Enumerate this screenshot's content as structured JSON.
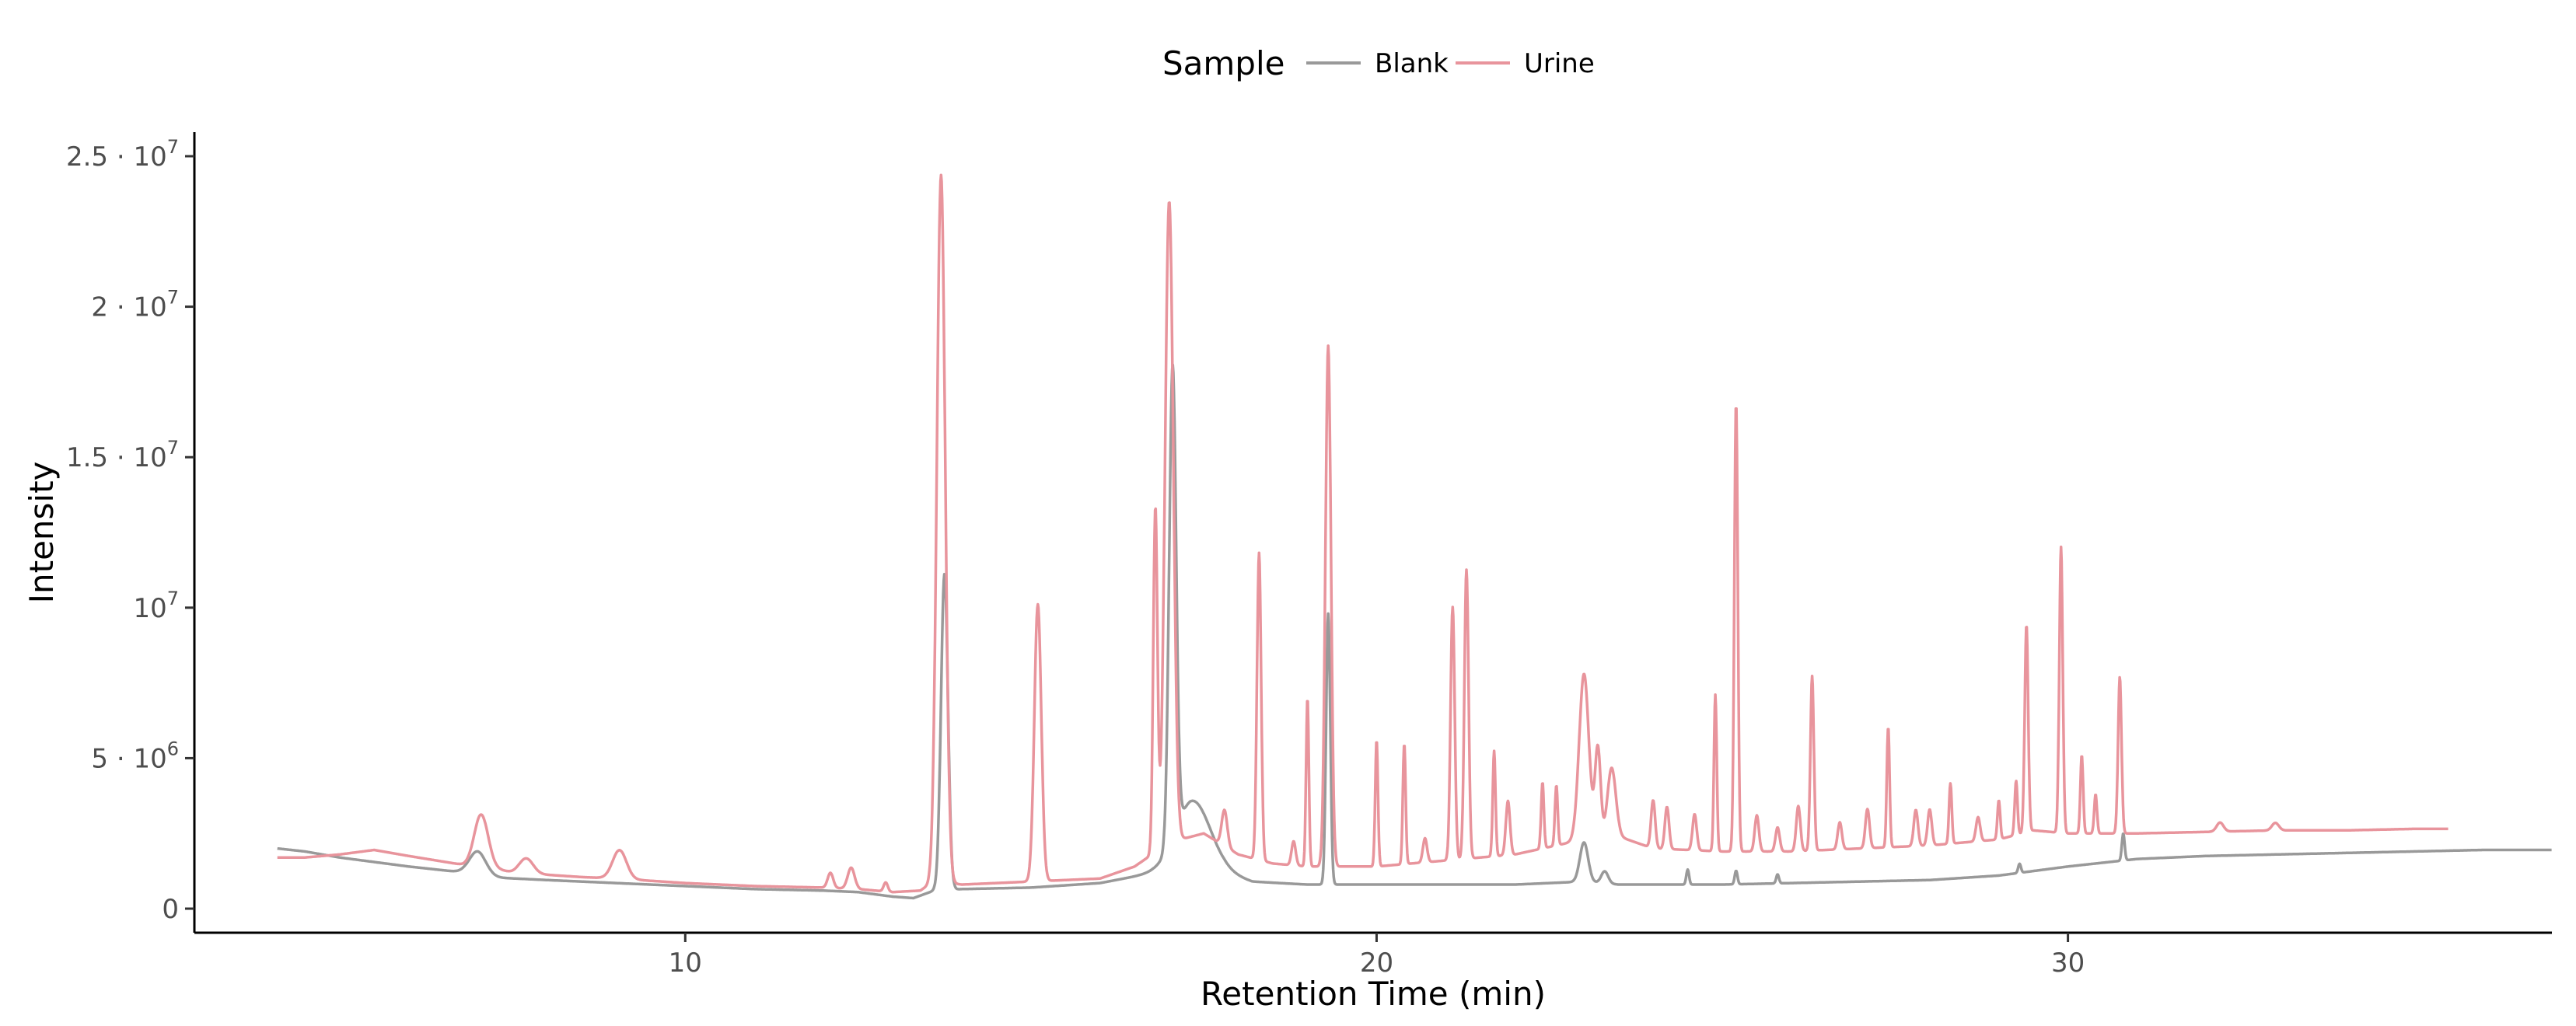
{
  "chart_data": {
    "type": "line",
    "xlabel": "Retention Time (min)",
    "ylabel": "Intensity",
    "xlim": [
      2.9,
      37.0
    ],
    "ylim": [
      -800000,
      25800000
    ],
    "x_ticks": [
      10,
      20,
      30
    ],
    "y_ticks": [
      {
        "value": 0,
        "mantissa": "0",
        "exp": ""
      },
      {
        "value": 5000000,
        "mantissa": "5 · 10",
        "exp": "6"
      },
      {
        "value": 10000000,
        "mantissa": "10",
        "exp": "7"
      },
      {
        "value": 15000000,
        "mantissa": "1.5 · 10",
        "exp": "7"
      },
      {
        "value": 20000000,
        "mantissa": "2 · 10",
        "exp": "7"
      },
      {
        "value": 25000000,
        "mantissa": "2.5 · 10",
        "exp": "7"
      }
    ],
    "grid": false,
    "legend": {
      "title": "Sample",
      "position": "top"
    },
    "series": [
      {
        "name": "Blank",
        "color": "#999999",
        "x_range": [
          4.1,
          37.0
        ],
        "baseline": [
          [
            4.1,
            2000000
          ],
          [
            4.5,
            1900000
          ],
          [
            5,
            1700000
          ],
          [
            6,
            1400000
          ],
          [
            6.8,
            1200000
          ],
          [
            7.1,
            1050000
          ],
          [
            8,
            950000
          ],
          [
            9,
            850000
          ],
          [
            10,
            750000
          ],
          [
            11,
            650000
          ],
          [
            12,
            600000
          ],
          [
            12.5,
            550000
          ],
          [
            13,
            400000
          ],
          [
            13.3,
            350000
          ],
          [
            13.6,
            600000
          ],
          [
            14,
            650000
          ],
          [
            15,
            700000
          ],
          [
            16,
            850000
          ],
          [
            16.8,
            1200000
          ],
          [
            17.3,
            1400000
          ],
          [
            17.8,
            1200000
          ],
          [
            18.2,
            900000
          ],
          [
            19,
            800000
          ],
          [
            20,
            800000
          ],
          [
            21,
            800000
          ],
          [
            22,
            800000
          ],
          [
            23,
            900000
          ],
          [
            23.5,
            800000
          ],
          [
            25,
            800000
          ],
          [
            26,
            850000
          ],
          [
            28,
            950000
          ],
          [
            29,
            1100000
          ],
          [
            30,
            1400000
          ],
          [
            31,
            1650000
          ],
          [
            32,
            1750000
          ],
          [
            33,
            1800000
          ],
          [
            34,
            1850000
          ],
          [
            35,
            1900000
          ],
          [
            36,
            1950000
          ],
          [
            37,
            1950000
          ]
        ],
        "peaks": [
          [
            7.0,
            800000,
            0.12
          ],
          [
            13.75,
            10500000,
            0.05
          ],
          [
            17.05,
            15700000,
            0.05
          ],
          [
            17.35,
            2200000,
            0.25
          ],
          [
            19.3,
            9000000,
            0.03
          ],
          [
            23.0,
            1300000,
            0.06
          ],
          [
            23.3,
            400000,
            0.05
          ],
          [
            24.5,
            500000,
            0.02
          ],
          [
            25.2,
            450000,
            0.02
          ],
          [
            25.8,
            300000,
            0.02
          ],
          [
            29.3,
            300000,
            0.02
          ],
          [
            30.8,
            900000,
            0.02
          ]
        ]
      },
      {
        "name": "Urine",
        "color": "#e8949c",
        "x_range": [
          4.1,
          35.5
        ],
        "baseline": [
          [
            4.1,
            1700000
          ],
          [
            4.5,
            1700000
          ],
          [
            5,
            1800000
          ],
          [
            5.5,
            1950000
          ],
          [
            6,
            1750000
          ],
          [
            6.8,
            1450000
          ],
          [
            7,
            1450000
          ],
          [
            7.5,
            1200000
          ],
          [
            8.5,
            1050000
          ],
          [
            9,
            1000000
          ],
          [
            10,
            850000
          ],
          [
            11,
            750000
          ],
          [
            12,
            700000
          ],
          [
            12.5,
            650000
          ],
          [
            13,
            550000
          ],
          [
            13.4,
            600000
          ],
          [
            13.6,
            900000
          ],
          [
            14,
            800000
          ],
          [
            15,
            900000
          ],
          [
            16,
            1000000
          ],
          [
            16.5,
            1400000
          ],
          [
            17,
            2200000
          ],
          [
            17.5,
            2500000
          ],
          [
            18,
            1800000
          ],
          [
            18.5,
            1500000
          ],
          [
            19,
            1400000
          ],
          [
            20,
            1400000
          ],
          [
            21,
            1600000
          ],
          [
            22,
            1800000
          ],
          [
            23,
            2300000
          ],
          [
            23.5,
            2400000
          ],
          [
            24,
            2000000
          ],
          [
            25,
            1900000
          ],
          [
            26,
            1900000
          ],
          [
            27,
            2000000
          ],
          [
            28,
            2100000
          ],
          [
            29,
            2300000
          ],
          [
            29.5,
            2600000
          ],
          [
            30,
            2500000
          ],
          [
            31,
            2500000
          ],
          [
            32,
            2550000
          ],
          [
            33,
            2600000
          ],
          [
            34,
            2600000
          ],
          [
            35,
            2650000
          ],
          [
            35.5,
            2650000
          ]
        ],
        "peaks": [
          [
            7.05,
            1700000,
            0.1
          ],
          [
            7.7,
            500000,
            0.1
          ],
          [
            9.05,
            950000,
            0.1
          ],
          [
            12.1,
            500000,
            0.04
          ],
          [
            12.4,
            700000,
            0.05
          ],
          [
            12.9,
            300000,
            0.03
          ],
          [
            13.7,
            23500000,
            0.06
          ],
          [
            15.1,
            9200000,
            0.05
          ],
          [
            16.8,
            11400000,
            0.03
          ],
          [
            17.0,
            21300000,
            0.06
          ],
          [
            17.8,
            1200000,
            0.04
          ],
          [
            18.3,
            10200000,
            0.03
          ],
          [
            18.8,
            800000,
            0.03
          ],
          [
            19.0,
            5600000,
            0.02
          ],
          [
            19.3,
            17300000,
            0.04
          ],
          [
            20.0,
            4200000,
            0.02
          ],
          [
            20.4,
            4000000,
            0.02
          ],
          [
            20.7,
            800000,
            0.03
          ],
          [
            21.1,
            8400000,
            0.03
          ],
          [
            21.3,
            9600000,
            0.03
          ],
          [
            21.7,
            3500000,
            0.02
          ],
          [
            21.9,
            1800000,
            0.03
          ],
          [
            22.4,
            2200000,
            0.02
          ],
          [
            22.6,
            2000000,
            0.02
          ],
          [
            23.0,
            5500000,
            0.07
          ],
          [
            23.2,
            3000000,
            0.04
          ],
          [
            23.4,
            2300000,
            0.06
          ],
          [
            24.0,
            1600000,
            0.03
          ],
          [
            24.2,
            1400000,
            0.03
          ],
          [
            24.6,
            1200000,
            0.03
          ],
          [
            24.9,
            5200000,
            0.02
          ],
          [
            25.2,
            14900000,
            0.025
          ],
          [
            25.5,
            1200000,
            0.03
          ],
          [
            25.8,
            800000,
            0.03
          ],
          [
            26.1,
            1500000,
            0.03
          ],
          [
            26.3,
            5800000,
            0.025
          ],
          [
            26.7,
            900000,
            0.03
          ],
          [
            27.1,
            1300000,
            0.03
          ],
          [
            27.4,
            4000000,
            0.02
          ],
          [
            27.8,
            1200000,
            0.03
          ],
          [
            28.0,
            1200000,
            0.03
          ],
          [
            28.3,
            2000000,
            0.02
          ],
          [
            28.7,
            800000,
            0.03
          ],
          [
            29.0,
            1300000,
            0.02
          ],
          [
            29.25,
            1800000,
            0.02
          ],
          [
            29.4,
            6900000,
            0.025
          ],
          [
            29.9,
            9500000,
            0.025
          ],
          [
            30.2,
            2600000,
            0.02
          ],
          [
            30.4,
            1300000,
            0.02
          ],
          [
            30.75,
            5200000,
            0.025
          ],
          [
            32.2,
            300000,
            0.05
          ],
          [
            33.0,
            250000,
            0.05
          ]
        ]
      }
    ]
  }
}
